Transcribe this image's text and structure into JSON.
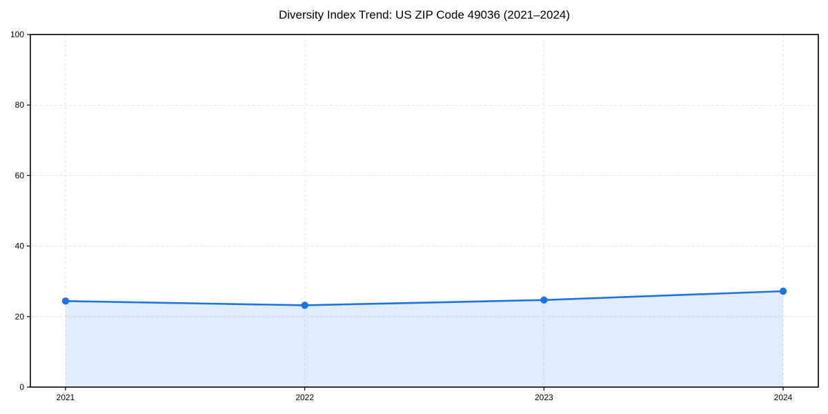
{
  "chart_data": {
    "type": "area",
    "title": "Diversity Index Trend: US ZIP Code 49036 (2021–2024)",
    "x": [
      "2021",
      "2022",
      "2023",
      "2024"
    ],
    "values": [
      24.4,
      23.2,
      24.7,
      27.2
    ],
    "xlabel": "",
    "ylabel": "",
    "ylim": [
      0,
      100
    ],
    "yticks": [
      0,
      20,
      40,
      60,
      80,
      100
    ],
    "grid": "dashed",
    "legend": "none",
    "marker": "circle",
    "colors": {
      "line": "#1a73e8",
      "marker": "#1a73e8",
      "fill": "rgba(26,115,232,0.13)",
      "grid": "#e3e3e3",
      "axis": "#000000",
      "text": "#000000"
    }
  }
}
